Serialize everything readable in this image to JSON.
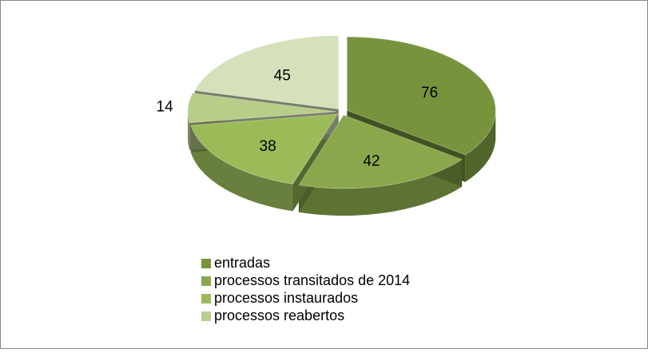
{
  "chart_data": {
    "type": "pie",
    "categories": [
      "entradas",
      "processos transitados de 2014",
      "processos instaurados",
      "processos reabertos",
      null
    ],
    "values": [
      76,
      42,
      38,
      14,
      45
    ],
    "colors": [
      "#77933c",
      "#8aa84b",
      "#9bbb59",
      "#b9cd8b",
      "#d4e1bb"
    ]
  }
}
